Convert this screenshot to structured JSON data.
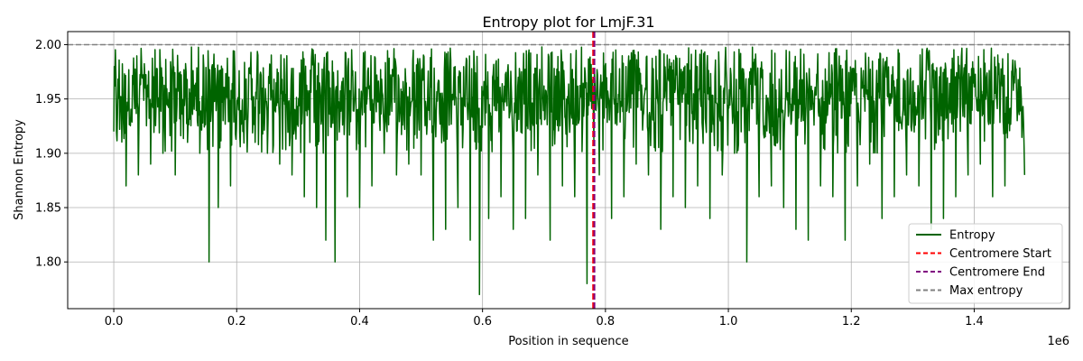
{
  "chart_data": {
    "type": "line",
    "title": "Entropy plot for LmjF.31",
    "xlabel": "Position in sequence",
    "ylabel": "Shannon Entropy",
    "x_offset_label": "1e6",
    "xlim": [
      -75000,
      1555000
    ],
    "ylim": [
      1.757,
      2.012
    ],
    "x_ticks": [
      0.0,
      0.2,
      0.4,
      0.6,
      0.8,
      1.0,
      1.2,
      1.4
    ],
    "x_tick_labels": [
      "0.0",
      "0.2",
      "0.4",
      "0.6",
      "0.8",
      "1.0",
      "1.2",
      "1.4"
    ],
    "y_ticks": [
      1.8,
      1.85,
      1.9,
      1.95,
      2.0
    ],
    "y_tick_labels": [
      "1.80",
      "1.85",
      "1.90",
      "1.95",
      "2.00"
    ],
    "grid": true,
    "legend_position": "lower-right",
    "series": [
      {
        "name": "Entropy",
        "color": "#006400",
        "style": "solid",
        "x": [
          0,
          20000,
          40000,
          60000,
          80000,
          100000,
          120000,
          140000,
          155000,
          170000,
          190000,
          210000,
          230000,
          250000,
          270000,
          290000,
          310000,
          330000,
          345000,
          360000,
          380000,
          400000,
          420000,
          440000,
          460000,
          480000,
          500000,
          520000,
          540000,
          560000,
          580000,
          595000,
          610000,
          630000,
          650000,
          670000,
          690000,
          710000,
          730000,
          750000,
          770000,
          790000,
          810000,
          830000,
          850000,
          870000,
          890000,
          910000,
          930000,
          950000,
          970000,
          990000,
          1010000,
          1030000,
          1050000,
          1070000,
          1090000,
          1110000,
          1130000,
          1150000,
          1170000,
          1190000,
          1210000,
          1230000,
          1250000,
          1270000,
          1290000,
          1310000,
          1330000,
          1350000,
          1370000,
          1390000,
          1410000,
          1430000,
          1450000,
          1470000,
          1482000
        ],
        "y": [
          1.92,
          1.87,
          1.88,
          1.89,
          1.9,
          1.88,
          1.91,
          1.9,
          1.8,
          1.85,
          1.87,
          1.92,
          1.91,
          1.9,
          1.89,
          1.88,
          1.86,
          1.85,
          1.82,
          1.8,
          1.86,
          1.85,
          1.87,
          1.9,
          1.88,
          1.89,
          1.88,
          1.82,
          1.83,
          1.85,
          1.82,
          1.77,
          1.84,
          1.86,
          1.83,
          1.84,
          1.88,
          1.82,
          1.87,
          1.86,
          1.78,
          1.88,
          1.84,
          1.86,
          1.89,
          1.88,
          1.83,
          1.86,
          1.85,
          1.87,
          1.84,
          1.88,
          1.9,
          1.8,
          1.86,
          1.87,
          1.85,
          1.83,
          1.82,
          1.87,
          1.86,
          1.82,
          1.87,
          1.89,
          1.84,
          1.86,
          1.88,
          1.87,
          1.83,
          1.84,
          1.86,
          1.88,
          1.89,
          1.86,
          1.87,
          1.93,
          1.88
        ]
      }
    ],
    "lines": [
      {
        "name": "Centromere Start",
        "orientation": "vertical",
        "value": 780000,
        "color": "#ff0000",
        "style": "dashed"
      },
      {
        "name": "Centromere End",
        "orientation": "vertical",
        "value": 782000,
        "color": "#800080",
        "style": "dashed"
      },
      {
        "name": "Max entropy",
        "orientation": "horizontal",
        "value": 2.0,
        "color": "#808080",
        "style": "dashed"
      }
    ],
    "legend": [
      "Entropy",
      "Centromere Start",
      "Centromere End",
      "Max entropy"
    ]
  }
}
